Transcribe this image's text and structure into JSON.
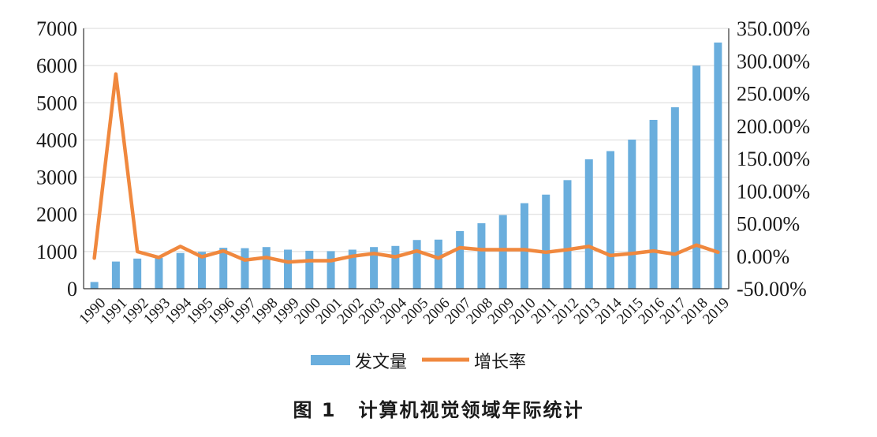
{
  "caption": {
    "label": "图 1",
    "title": "计算机视觉领域年际统计"
  },
  "chart_data": {
    "type": "bar+line",
    "categories": [
      "1990",
      "1991",
      "1992",
      "1993",
      "1994",
      "1995",
      "1996",
      "1997",
      "1998",
      "1999",
      "2000",
      "2001",
      "2002",
      "2003",
      "2004",
      "2005",
      "2006",
      "2007",
      "2008",
      "2009",
      "2010",
      "2011",
      "2012",
      "2013",
      "2014",
      "2015",
      "2016",
      "2017",
      "2018",
      "2019"
    ],
    "series": [
      {
        "name": "发文量",
        "type": "bar",
        "axis": "left",
        "color": "#6aaedd",
        "values": [
          180,
          730,
          810,
          830,
          960,
          990,
          1100,
          1090,
          1120,
          1050,
          1020,
          1010,
          1050,
          1120,
          1150,
          1310,
          1320,
          1550,
          1760,
          1980,
          2300,
          2530,
          2920,
          3480,
          3700,
          4010,
          4540,
          4880,
          6000,
          6620
        ]
      },
      {
        "name": "增长率",
        "type": "line",
        "axis": "right",
        "color": "#f0883e",
        "values": [
          -3,
          280,
          7,
          -2,
          15,
          -1,
          8,
          -6,
          -2,
          -9,
          -7,
          -7,
          0,
          4,
          -1,
          8,
          -3,
          13,
          10,
          10,
          10,
          6,
          10,
          15,
          1,
          4,
          8,
          3,
          17,
          6
        ]
      }
    ],
    "y_left": {
      "min": 0,
      "max": 7000,
      "ticks": [
        "0",
        "1000",
        "2000",
        "3000",
        "4000",
        "5000",
        "6000",
        "7000"
      ]
    },
    "y_right": {
      "min": -50,
      "max": 350,
      "ticks": [
        "-50.00%",
        "0.00%",
        "50.00%",
        "100.00%",
        "150.00%",
        "200.00%",
        "250.00%",
        "300.00%",
        "350.00%"
      ]
    },
    "grid": true,
    "legend": "bottom"
  }
}
